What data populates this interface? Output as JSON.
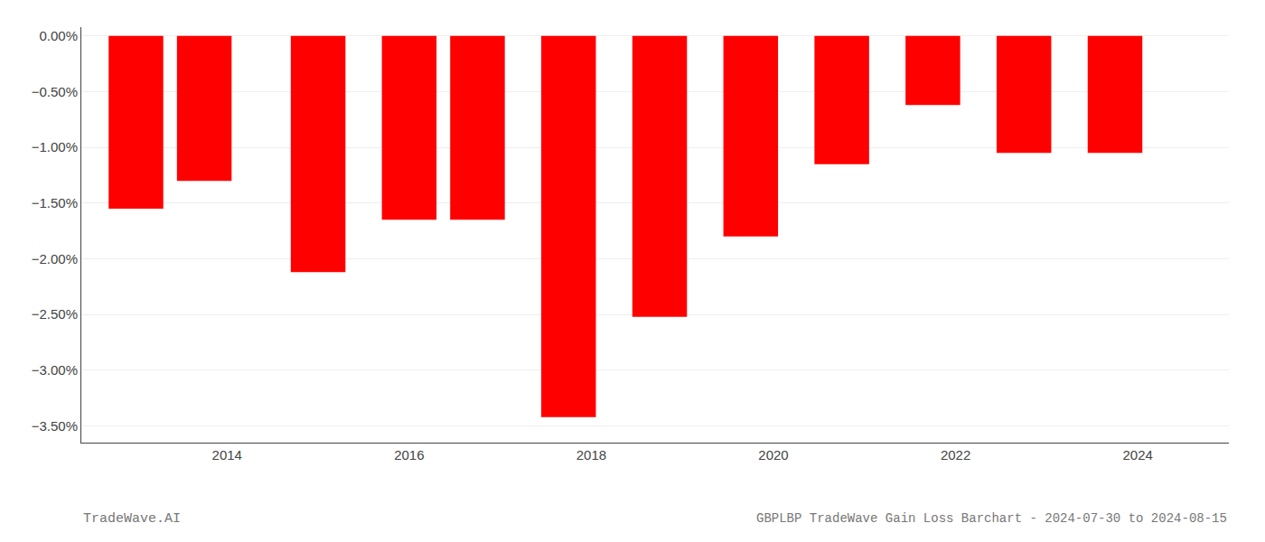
{
  "chart_data": {
    "type": "bar",
    "title": "GBPLBP TradeWave Gain Loss Barchart - 2024-07-30 to 2024-08-15",
    "annotations": [
      "TradeWave.AI"
    ],
    "x": [
      2013.0,
      2013.75,
      2015.0,
      2016.0,
      2016.75,
      2017.75,
      2018.75,
      2019.75,
      2020.75,
      2021.75,
      2022.75,
      2023.75
    ],
    "values": [
      -1.55,
      -1.3,
      -2.12,
      -1.65,
      -1.65,
      -3.42,
      -2.52,
      -1.8,
      -1.15,
      -0.62,
      -1.05,
      -1.05
    ],
    "color": "#FF0000",
    "xlim": [
      2012.4,
      2025.0
    ],
    "xticks": [
      2014,
      2016,
      2018,
      2020,
      2022,
      2024
    ],
    "ylim": [
      -3.65,
      0.08
    ],
    "yticks": [
      {
        "value": 0.0,
        "label": "0.00%"
      },
      {
        "value": -0.5,
        "label": "−0.50%"
      },
      {
        "value": -1.0,
        "label": "−1.00%"
      },
      {
        "value": -1.5,
        "label": "−1.50%"
      },
      {
        "value": -2.0,
        "label": "−2.00%"
      },
      {
        "value": -2.5,
        "label": "−2.50%"
      },
      {
        "value": -3.0,
        "label": "−3.00%"
      },
      {
        "value": -3.5,
        "label": "−3.50%"
      }
    ],
    "grid": true
  }
}
